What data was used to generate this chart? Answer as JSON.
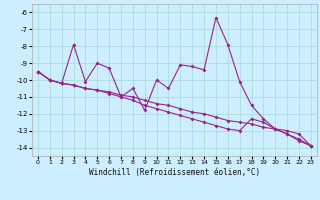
{
  "x": [
    0,
    1,
    2,
    3,
    4,
    5,
    6,
    7,
    8,
    9,
    10,
    11,
    12,
    13,
    14,
    15,
    16,
    17,
    18,
    19,
    20,
    21,
    22,
    23
  ],
  "line1": [
    -9.5,
    -10.0,
    -10.2,
    -7.9,
    -10.1,
    -9.0,
    -9.3,
    -11.0,
    -10.5,
    -11.8,
    -10.0,
    -10.5,
    -9.1,
    -9.2,
    -9.4,
    -6.3,
    -7.9,
    -10.1,
    -11.5,
    -12.3,
    -12.9,
    -13.2,
    -13.5,
    -13.9
  ],
  "line2": [
    -9.5,
    -10.0,
    -10.2,
    -10.3,
    -10.5,
    -10.6,
    -10.7,
    -10.9,
    -11.0,
    -11.2,
    -11.4,
    -11.5,
    -11.7,
    -11.9,
    -12.0,
    -12.2,
    -12.4,
    -12.5,
    -12.6,
    -12.8,
    -12.9,
    -13.0,
    -13.2,
    -13.9
  ],
  "line3": [
    -9.5,
    -10.0,
    -10.2,
    -10.3,
    -10.5,
    -10.6,
    -10.8,
    -11.0,
    -11.2,
    -11.5,
    -11.7,
    -11.9,
    -12.1,
    -12.3,
    -12.5,
    -12.7,
    -12.9,
    -13.0,
    -12.3,
    -12.5,
    -12.9,
    -13.2,
    -13.6,
    -13.9
  ],
  "color": "#992288",
  "bg_color": "#cceeff",
  "grid_color": "#aadddd",
  "xlabel": "Windchill (Refroidissement éolien,°C)",
  "ylim": [
    -14.5,
    -5.5
  ],
  "xlim": [
    -0.5,
    23.5
  ],
  "yticks": [
    -14,
    -13,
    -12,
    -11,
    -10,
    -9,
    -8,
    -7,
    -6
  ],
  "xticks": [
    0,
    1,
    2,
    3,
    4,
    5,
    6,
    7,
    8,
    9,
    10,
    11,
    12,
    13,
    14,
    15,
    16,
    17,
    18,
    19,
    20,
    21,
    22,
    23
  ]
}
